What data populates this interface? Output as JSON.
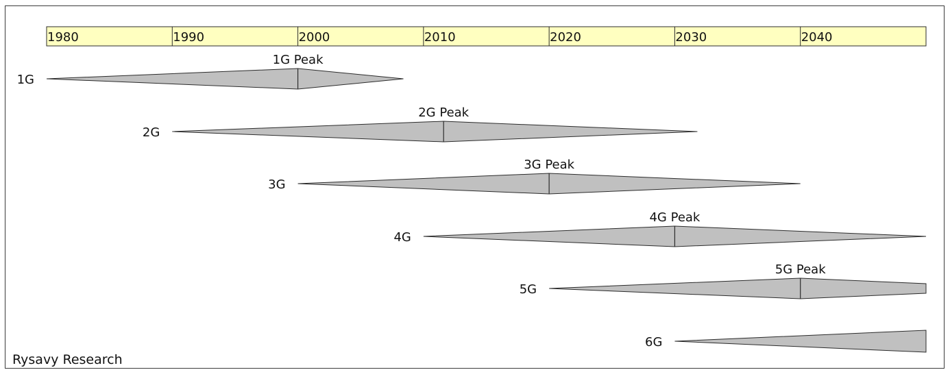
{
  "credit": "Rysavy Research",
  "colors": {
    "timeline_fill": "#ffffc0",
    "shape_fill": "#c0c0c0",
    "stroke": "#2b2b2b",
    "text": "#111111"
  },
  "timeline": {
    "ticks": [
      "1980",
      "1990",
      "2000",
      "2010",
      "2020",
      "2030",
      "2040"
    ],
    "start_year": 1980,
    "end_year": 2050
  },
  "generations": [
    {
      "label": "1G",
      "peak_label": "1G Peak",
      "start": 1980,
      "peak": 2000,
      "end": 2008.4
    },
    {
      "label": "2G",
      "peak_label": "2G Peak",
      "start": 1990,
      "peak": 2011.6,
      "end": 2031.8
    },
    {
      "label": "3G",
      "peak_label": "3G Peak",
      "start": 2000,
      "peak": 2020,
      "end": 2040
    },
    {
      "label": "4G",
      "peak_label": "4G Peak",
      "start": 2010,
      "peak": 2030,
      "end": 2050
    },
    {
      "label": "5G",
      "peak_label": "5G Peak",
      "start": 2020,
      "peak": 2040,
      "end": 2050
    },
    {
      "label": "6G",
      "peak_label": "",
      "start": 2030,
      "peak": null,
      "end": 2050
    }
  ]
}
